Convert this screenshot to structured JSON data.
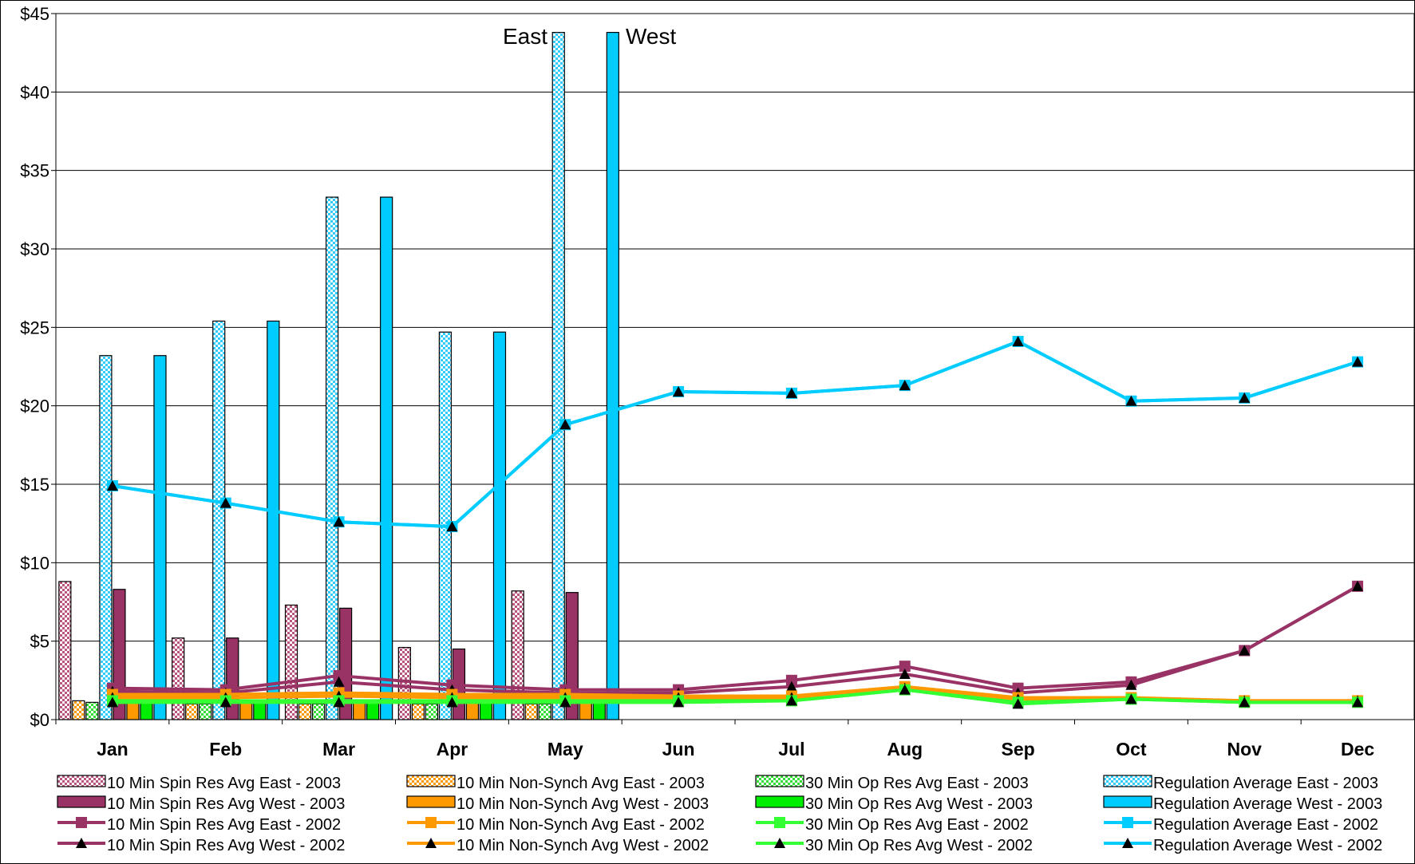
{
  "chart_data": {
    "type": "bar",
    "title": "",
    "xlabel": "",
    "ylabel": "",
    "categories": [
      "Jan",
      "Feb",
      "Mar",
      "Apr",
      "May",
      "Jun",
      "Jul",
      "Aug",
      "Sep",
      "Oct",
      "Nov",
      "Dec"
    ],
    "ylim": [
      0,
      45
    ],
    "y_ticks": [
      "$0",
      "$5",
      "$10",
      "$15",
      "$20",
      "$25",
      "$30",
      "$35",
      "$40",
      "$45"
    ],
    "grid": true,
    "legend_position": "bottom",
    "annotations": [
      "East",
      "West"
    ],
    "bar_series": [
      {
        "name": "10 Min Spin Res Avg East - 2003",
        "color": "#c994ac",
        "pattern": "hatch",
        "values": [
          8.8,
          5.2,
          7.3,
          4.6,
          8.2
        ]
      },
      {
        "name": "10 Min Non-Synch Avg East - 2003",
        "color": "#ffb347",
        "pattern": "hatch",
        "values": [
          1.2,
          1.0,
          1.0,
          1.0,
          1.0
        ]
      },
      {
        "name": "30 Min Op Res Avg East - 2003",
        "color": "#7ef07e",
        "pattern": "hatch",
        "values": [
          1.1,
          1.0,
          1.0,
          1.0,
          1.0
        ]
      },
      {
        "name": "Regulation Average East - 2003",
        "color": "#7fdfff",
        "pattern": "hatch",
        "values": [
          23.2,
          25.4,
          33.3,
          24.7,
          43.8
        ]
      },
      {
        "name": "10 Min Spin Res Avg West - 2003",
        "color": "#993366",
        "pattern": "solid",
        "values": [
          8.3,
          5.2,
          7.1,
          4.5,
          8.1
        ]
      },
      {
        "name": "10 Min Non-Synch Avg West - 2003",
        "color": "#ff9900",
        "pattern": "solid",
        "values": [
          1.3,
          1.2,
          1.2,
          1.2,
          1.2
        ]
      },
      {
        "name": "30 Min Op Res Avg West - 2003",
        "color": "#00ee00",
        "pattern": "solid",
        "values": [
          1.3,
          1.2,
          1.2,
          1.2,
          1.2
        ]
      },
      {
        "name": "Regulation Average West - 2003",
        "color": "#00ccff",
        "pattern": "solid",
        "values": [
          23.2,
          25.4,
          33.3,
          24.7,
          43.8
        ]
      }
    ],
    "line_series": [
      {
        "name": "10 Min Spin Res Avg East - 2002",
        "color": "#993366",
        "marker": "square",
        "values": [
          2.0,
          1.9,
          2.8,
          2.2,
          1.9,
          1.9,
          2.5,
          3.4,
          2.0,
          2.4,
          4.4,
          8.5
        ]
      },
      {
        "name": "10 Min Spin Res Avg West - 2002",
        "color": "#993366",
        "marker": "triangle",
        "values": [
          1.8,
          1.7,
          2.4,
          1.9,
          1.7,
          1.7,
          2.1,
          2.9,
          1.7,
          2.2,
          4.4,
          8.5
        ]
      },
      {
        "name": "10 Min Non-Synch Avg East - 2002",
        "color": "#ff9900",
        "marker": "square",
        "values": [
          1.6,
          1.6,
          1.7,
          1.6,
          1.6,
          1.5,
          1.5,
          2.1,
          1.4,
          1.4,
          1.2,
          1.2
        ]
      },
      {
        "name": "10 Min Non-Synch Avg West - 2002",
        "color": "#ff9900",
        "marker": "triangle",
        "values": [
          1.4,
          1.4,
          1.5,
          1.4,
          1.4,
          1.4,
          1.4,
          2.0,
          1.3,
          1.3,
          1.2,
          1.2
        ]
      },
      {
        "name": "30 Min Op Res Avg East - 2002",
        "color": "#33ff33",
        "marker": "square",
        "values": [
          1.2,
          1.2,
          1.2,
          1.2,
          1.2,
          1.2,
          1.2,
          1.9,
          1.1,
          1.3,
          1.1,
          1.1
        ]
      },
      {
        "name": "30 Min Op Res Avg West - 2002",
        "color": "#33ff33",
        "marker": "triangle",
        "values": [
          1.1,
          1.1,
          1.1,
          1.1,
          1.1,
          1.1,
          1.2,
          1.9,
          1.0,
          1.3,
          1.1,
          1.1
        ]
      },
      {
        "name": "Regulation Average East - 2002",
        "color": "#00ccff",
        "marker": "square",
        "values": [
          14.9,
          13.8,
          12.6,
          12.3,
          18.8,
          20.9,
          20.8,
          21.3,
          24.1,
          20.3,
          20.5,
          22.8
        ]
      },
      {
        "name": "Regulation Average West - 2002",
        "color": "#00ccff",
        "marker": "triangle",
        "values": [
          14.9,
          13.8,
          12.6,
          12.3,
          18.8,
          20.9,
          20.8,
          21.3,
          24.1,
          20.3,
          20.5,
          22.8
        ]
      }
    ],
    "legend": [
      "10 Min Spin Res Avg East - 2003",
      "10 Min Non-Synch Avg East - 2003",
      "30 Min Op Res Avg East - 2003",
      "Regulation Average East - 2003",
      "10 Min Spin Res Avg West - 2003",
      "10 Min Non-Synch Avg West - 2003",
      "30 Min Op Res Avg West - 2003",
      "Regulation Average West - 2003",
      "10 Min Spin Res Avg East - 2002",
      "10 Min Non-Synch Avg East - 2002",
      "30 Min Op Res Avg East - 2002",
      "Regulation Average East - 2002",
      "10 Min Spin Res Avg West - 2002",
      "10 Min Non-Synch Avg West - 2002",
      "30 Min Op Res Avg West - 2002",
      "Regulation Average West - 2002"
    ]
  }
}
